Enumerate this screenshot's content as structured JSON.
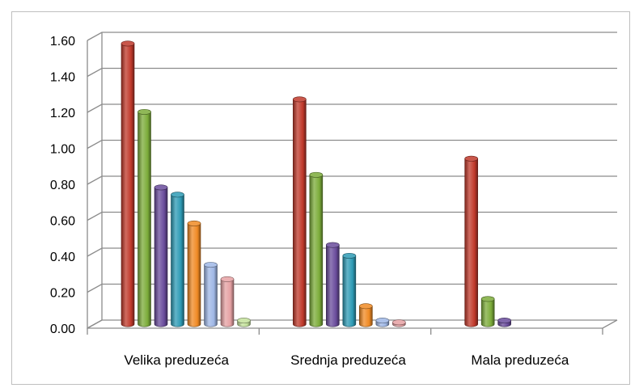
{
  "chart_data": {
    "type": "bar",
    "categories": [
      "Velika preduzeća",
      "Srednja preduzeća",
      "Mala preduzeća"
    ],
    "series": [
      {
        "color": "#c0392b",
        "values": [
          1.56,
          1.25,
          0.92
        ]
      },
      {
        "color": "#7cac3a",
        "values": [
          1.18,
          0.83,
          0.14
        ]
      },
      {
        "color": "#6a4c9c",
        "values": [
          0.76,
          0.44,
          0.02
        ]
      },
      {
        "color": "#2e9bb5",
        "values": [
          0.72,
          0.38,
          0.0
        ]
      },
      {
        "color": "#f08a24",
        "values": [
          0.56,
          0.1,
          0.0
        ]
      },
      {
        "color": "#9fb7e6",
        "values": [
          0.33,
          0.02,
          0.0
        ]
      },
      {
        "color": "#e6a1a3",
        "values": [
          0.25,
          0.01,
          0.0
        ]
      },
      {
        "color": "#c4e29b",
        "values": [
          0.02,
          0.0,
          0.0
        ]
      }
    ],
    "yticks": [
      "0.00",
      "0.20",
      "0.40",
      "0.60",
      "0.80",
      "1.00",
      "1.20",
      "1.40",
      "1.60"
    ],
    "ylim": [
      0,
      1.6
    ],
    "grid": true,
    "style": "3d-cylinder"
  }
}
